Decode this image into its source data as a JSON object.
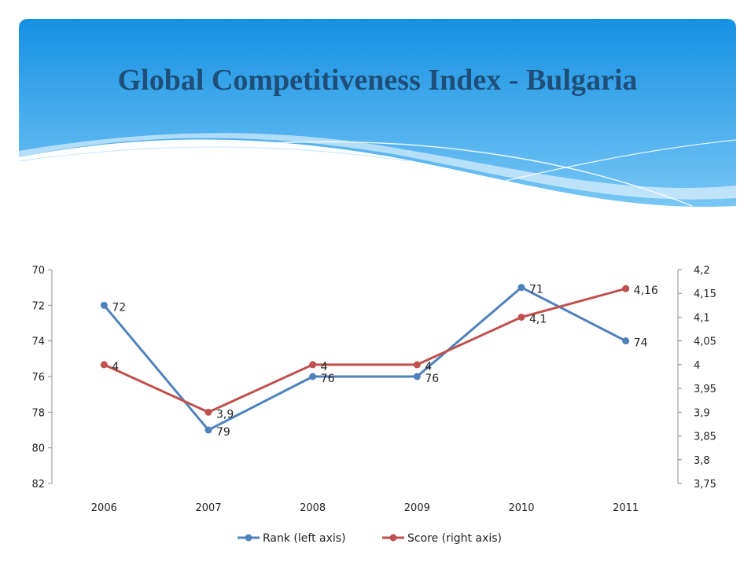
{
  "slide": {
    "title": "Global Competitiveness Index - Bulgaria"
  },
  "chart_data": {
    "type": "line",
    "title": "",
    "x": [
      "2006",
      "2007",
      "2008",
      "2009",
      "2010",
      "2011"
    ],
    "grid": false,
    "legend_position": "bottom",
    "series": [
      {
        "name": "Rank (left axis)",
        "axis": "left",
        "color": "#4f81bd",
        "values": [
          72,
          79,
          76,
          76,
          71,
          74
        ],
        "labels": [
          "72",
          "79",
          "76",
          "76",
          "71",
          "74"
        ]
      },
      {
        "name": "Score (right axis)",
        "axis": "right",
        "color": "#c0504d",
        "values": [
          4.0,
          3.9,
          4.0,
          4.0,
          4.1,
          4.16
        ],
        "labels": [
          "4",
          "3,9",
          "4",
          "4",
          "4,1",
          "4,16"
        ]
      }
    ],
    "left_axis": {
      "range": [
        70,
        82
      ],
      "reversed": true,
      "ticks": [
        70,
        72,
        74,
        76,
        78,
        80,
        82
      ],
      "tick_labels": [
        "70",
        "72",
        "74",
        "76",
        "78",
        "80",
        "82"
      ]
    },
    "right_axis": {
      "range": [
        3.75,
        4.2
      ],
      "reversed": false,
      "ticks": [
        4.2,
        4.15,
        4.1,
        4.05,
        4.0,
        3.95,
        3.9,
        3.85,
        3.8,
        3.75
      ],
      "tick_labels": [
        "4,2",
        "4,15",
        "4,1",
        "4,05",
        "4",
        "3,95",
        "3,9",
        "3,85",
        "3,8",
        "3,75"
      ]
    }
  }
}
